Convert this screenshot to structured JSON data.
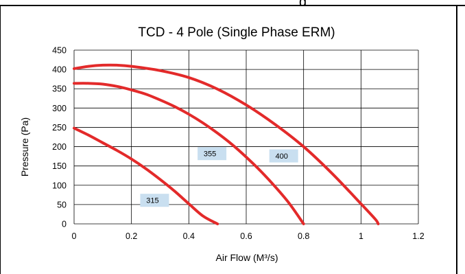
{
  "header": {
    "clipped_text": "g"
  },
  "chart_data": {
    "type": "line",
    "title": "TCD - 4 Pole (Single Phase ERM)",
    "xlabel": "Air Flow (M³/s)",
    "ylabel": "Pressure (Pa)",
    "xlim": [
      0,
      1.2
    ],
    "ylim": [
      0,
      450
    ],
    "x_ticks": [
      "0",
      "0.2",
      "0.4",
      "0.6",
      "0.8",
      "1",
      "1.2"
    ],
    "y_ticks": [
      "0",
      "50",
      "100",
      "150",
      "200",
      "250",
      "300",
      "350",
      "400",
      "450"
    ],
    "grid": true,
    "series_color": "#e32a2a",
    "label_bg_color": "#c9dff0",
    "series": [
      {
        "name": "315",
        "x": [
          0,
          0.05,
          0.1,
          0.15,
          0.2,
          0.25,
          0.3,
          0.35,
          0.4,
          0.45,
          0.5
        ],
        "y": [
          248,
          230,
          210,
          190,
          168,
          143,
          115,
          85,
          52,
          20,
          0
        ]
      },
      {
        "name": "355",
        "x": [
          0,
          0.05,
          0.1,
          0.15,
          0.2,
          0.25,
          0.3,
          0.35,
          0.4,
          0.45,
          0.5,
          0.55,
          0.6,
          0.65,
          0.7,
          0.75,
          0.8
        ],
        "y": [
          364,
          364,
          362,
          356,
          347,
          336,
          321,
          304,
          284,
          261,
          235,
          206,
          173,
          137,
          97,
          53,
          0
        ]
      },
      {
        "name": "400",
        "x": [
          0,
          0.05,
          0.1,
          0.15,
          0.2,
          0.3,
          0.4,
          0.5,
          0.6,
          0.7,
          0.8,
          0.9,
          1.0,
          1.05,
          1.06
        ],
        "y": [
          402,
          408,
          411,
          411,
          408,
          397,
          379,
          349,
          308,
          258,
          200,
          130,
          52,
          12,
          0
        ]
      }
    ]
  }
}
